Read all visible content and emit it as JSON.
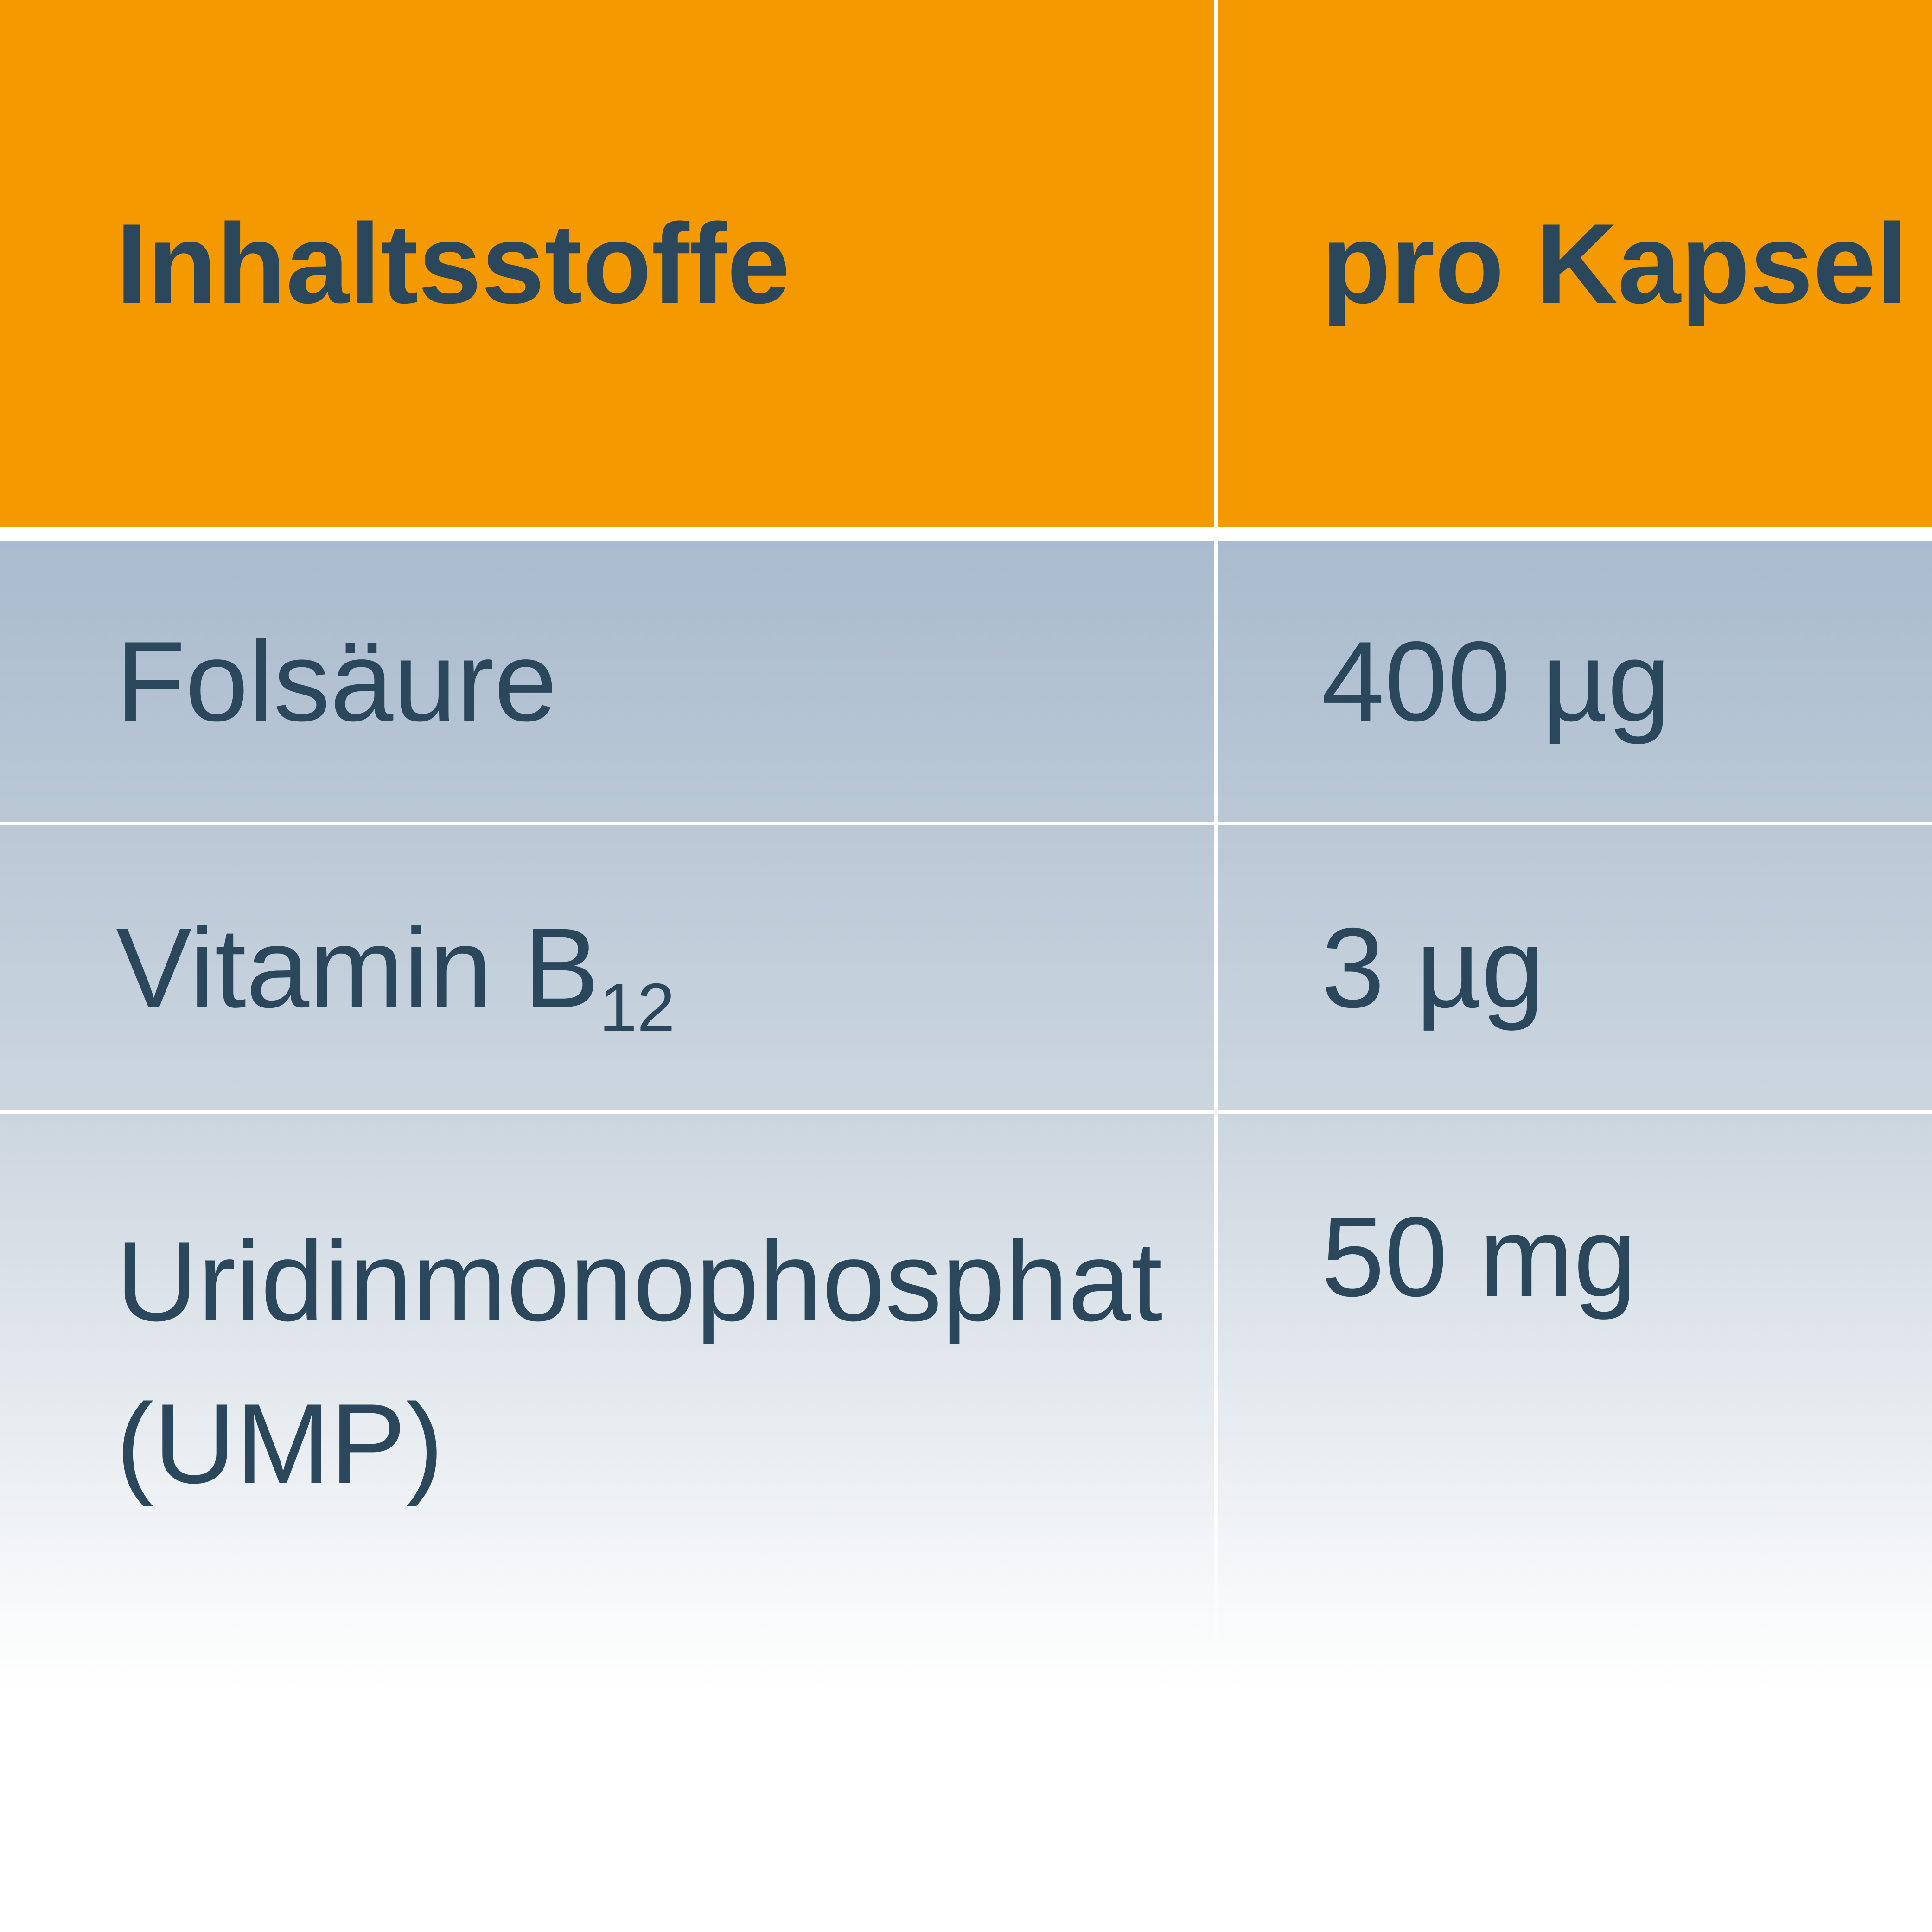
{
  "colors": {
    "orange": "#f49900",
    "text_dark": "#2a475c",
    "gradient_top": "#a9bbce",
    "gradient_mid": "#ccd6df",
    "gradient_bottom": "#ffffff",
    "divider_white": "#ffffff"
  },
  "table": {
    "header": {
      "ingredients_label": "Inhaltsstoffe",
      "per_capsule_label": "pro Kapsel"
    },
    "rows": [
      {
        "name": "Folsäure",
        "value": "400 µg"
      },
      {
        "name": "Vitamin B",
        "name_subscript": "12",
        "value": "3 µg"
      },
      {
        "name_line1": "Uridinmonophosphat",
        "name_line2": "(UMP)",
        "value": "50 mg"
      }
    ]
  }
}
